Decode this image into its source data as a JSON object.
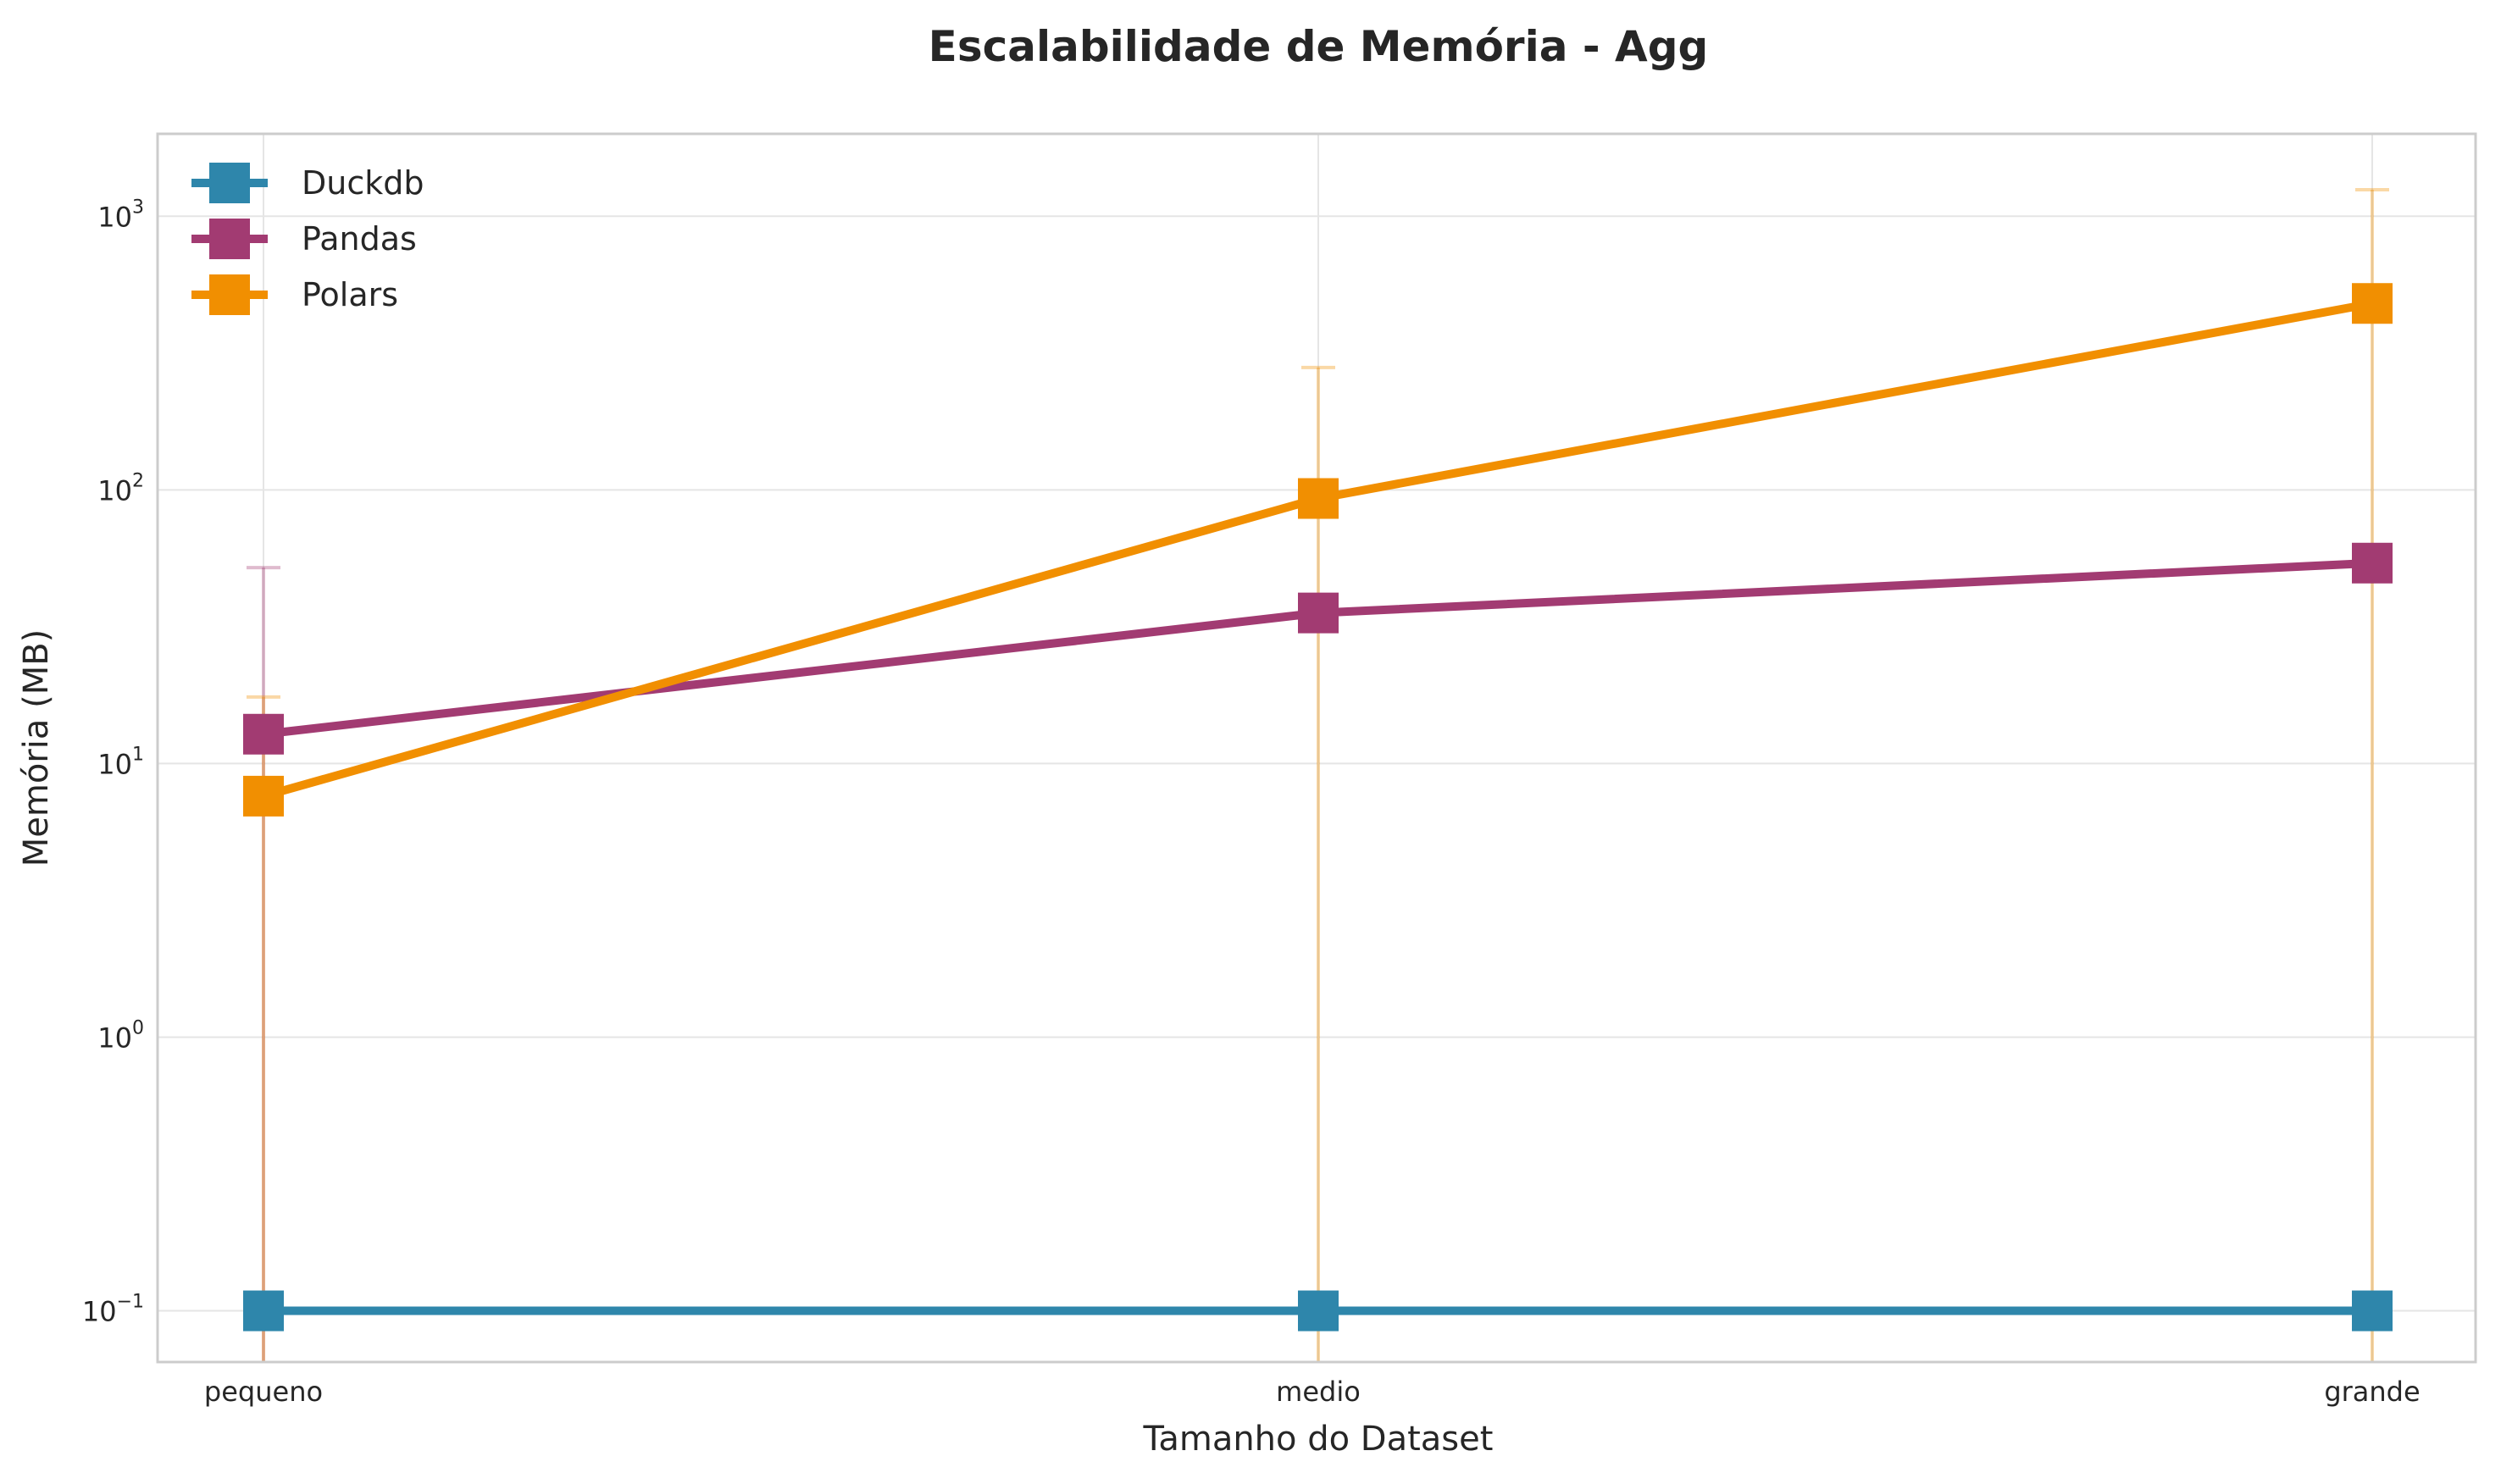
{
  "chart_data": {
    "type": "line",
    "title": "Escalabilidade de Memória - Agg",
    "xlabel": "Tamanho do Dataset",
    "ylabel": "Memória (MB)",
    "categories": [
      "pequeno",
      "medio",
      "grande"
    ],
    "yscale": "log",
    "ylim": [
      0.065,
      2000
    ],
    "yticks": [
      {
        "value": 0.1,
        "base": "10",
        "exp": "−1"
      },
      {
        "value": 1,
        "base": "10",
        "exp": "0"
      },
      {
        "value": 10,
        "base": "10",
        "exp": "1"
      },
      {
        "value": 100,
        "base": "10",
        "exp": "2"
      },
      {
        "value": 1000,
        "base": "10",
        "exp": "3"
      }
    ],
    "grid": true,
    "legend_position": "top-left",
    "series": [
      {
        "name": "Duckdb",
        "color": "#2E86AB",
        "values": [
          0.1,
          0.1,
          0.1
        ],
        "err_upper": [
          0.1,
          0.1,
          0.1
        ]
      },
      {
        "name": "Pandas",
        "color": "#A23B72",
        "values": [
          12.8,
          35.5,
          54
        ],
        "err_upper": [
          52,
          35.5,
          54
        ]
      },
      {
        "name": "Polars",
        "color": "#F18F01",
        "values": [
          7.6,
          93,
          480
        ],
        "err_upper": [
          17.5,
          280,
          1250
        ]
      }
    ]
  }
}
